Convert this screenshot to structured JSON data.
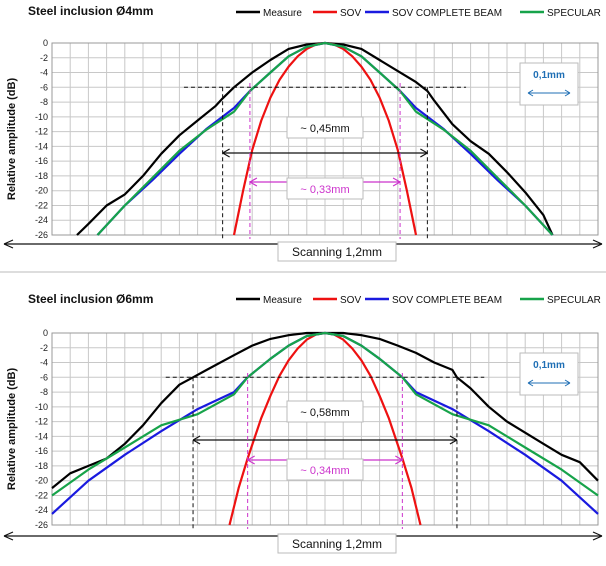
{
  "colors": {
    "measure": "#000000",
    "sov": "#ee1111",
    "sov_complete": "#1a1adf",
    "specular": "#17a34a",
    "annotation_dim": "#cc33cc",
    "annotation_ref": "#1f6fb5"
  },
  "legend": [
    "Measure",
    "SOV",
    "SOV COMPLETE BEAM",
    "SPECULAR"
  ],
  "chart_data": [
    {
      "type": "line",
      "title": "Steel inclusion Ø4mm",
      "ylabel": "Relative amplitude (dB)",
      "xlabel": "Scanning 1,2mm",
      "ylim": [
        -26,
        0
      ],
      "yticks": [
        "0",
        "-2",
        "-4",
        "-6",
        "-8",
        "-10",
        "-12",
        "-14",
        "-16",
        "-18",
        "-20",
        "-22",
        "-24",
        "-26"
      ],
      "xlim": [
        -0.6,
        0.6
      ],
      "grid": true,
      "legend_position": "top",
      "annotations": {
        "measure_width": "~ 0,45mm",
        "sov_width": "~ 0,33mm",
        "reference": "0,1mm"
      },
      "series": [
        {
          "name": "Measure",
          "x": [
            -0.545,
            -0.52,
            -0.48,
            -0.44,
            -0.4,
            -0.36,
            -0.32,
            -0.28,
            -0.24,
            -0.225,
            -0.2,
            -0.16,
            -0.12,
            -0.08,
            -0.04,
            0,
            0.04,
            0.08,
            0.12,
            0.16,
            0.2,
            0.225,
            0.24,
            0.28,
            0.32,
            0.36,
            0.4,
            0.44,
            0.48,
            0.5
          ],
          "y": [
            -26,
            -24.5,
            -22,
            -20.5,
            -18,
            -15,
            -12.5,
            -10.5,
            -8.5,
            -7.5,
            -6,
            -4,
            -2.3,
            -0.8,
            -0.2,
            0,
            -0.2,
            -0.8,
            -2.3,
            -3.8,
            -5.3,
            -6.5,
            -7.8,
            -11,
            -13.3,
            -15,
            -17.5,
            -20.2,
            -23.3,
            -26
          ]
        },
        {
          "name": "SOV",
          "x": [
            -0.2,
            -0.18,
            -0.16,
            -0.14,
            -0.12,
            -0.1,
            -0.08,
            -0.06,
            -0.04,
            -0.02,
            0,
            0.02,
            0.04,
            0.06,
            0.08,
            0.1,
            0.12,
            0.14,
            0.16,
            0.18,
            0.2
          ],
          "y": [
            -26,
            -20,
            -14.5,
            -10.5,
            -7.4,
            -5,
            -3.2,
            -1.8,
            -0.8,
            -0.2,
            0,
            -0.2,
            -0.8,
            -1.8,
            -3.2,
            -5,
            -7.4,
            -10.5,
            -14.5,
            -20,
            -26
          ]
        },
        {
          "name": "SOV COMPLETE BEAM",
          "x": [
            -0.5,
            -0.44,
            -0.38,
            -0.32,
            -0.26,
            -0.2,
            -0.165,
            -0.12,
            -0.08,
            -0.04,
            0,
            0.04,
            0.08,
            0.12,
            0.165,
            0.2,
            0.26,
            0.32,
            0.38,
            0.44,
            0.5
          ],
          "y": [
            -26,
            -22,
            -18.6,
            -15,
            -11.6,
            -8.8,
            -6.5,
            -4,
            -1.8,
            -0.5,
            0,
            -0.5,
            -1.8,
            -4,
            -6.5,
            -8.8,
            -11.6,
            -15,
            -18.6,
            -22,
            -26
          ]
        },
        {
          "name": "SPECULAR",
          "x": [
            -0.5,
            -0.44,
            -0.38,
            -0.32,
            -0.26,
            -0.2,
            -0.165,
            -0.12,
            -0.08,
            -0.04,
            0,
            0.04,
            0.08,
            0.12,
            0.165,
            0.2,
            0.26,
            0.32,
            0.38,
            0.44,
            0.5
          ],
          "y": [
            -26,
            -22,
            -18.3,
            -14.6,
            -11.7,
            -9.3,
            -6.5,
            -4,
            -1.8,
            -0.5,
            0,
            -0.5,
            -1.8,
            -4,
            -6.5,
            -9.3,
            -11.7,
            -14.6,
            -18.3,
            -22,
            -26
          ]
        }
      ]
    },
    {
      "type": "line",
      "title": "Steel inclusion Ø6mm",
      "ylabel": "Relative amplitude (dB)",
      "xlabel": "Scanning 1,2mm",
      "ylim": [
        -26,
        0
      ],
      "yticks": [
        "0",
        "-2",
        "-4",
        "-6",
        "-8",
        "-10",
        "-12",
        "-14",
        "-16",
        "-18",
        "-20",
        "-22",
        "-24",
        "-26"
      ],
      "xlim": [
        -0.6,
        0.6
      ],
      "grid": true,
      "legend_position": "top",
      "annotations": {
        "measure_width": "~ 0,58mm",
        "sov_width": "~ 0,34mm",
        "reference": "0,1mm"
      },
      "series": [
        {
          "name": "Measure",
          "x": [
            -0.6,
            -0.56,
            -0.52,
            -0.48,
            -0.44,
            -0.4,
            -0.36,
            -0.32,
            -0.29,
            -0.26,
            -0.2,
            -0.16,
            -0.12,
            -0.08,
            -0.04,
            0,
            0.04,
            0.08,
            0.12,
            0.16,
            0.2,
            0.24,
            0.28,
            0.29,
            0.32,
            0.36,
            0.4,
            0.44,
            0.48,
            0.52,
            0.56,
            0.6
          ],
          "y": [
            -21,
            -19,
            -18,
            -17,
            -15,
            -12.5,
            -9.5,
            -7,
            -6,
            -5,
            -3,
            -1.7,
            -0.8,
            -0.3,
            0,
            0,
            0,
            -0.3,
            -0.8,
            -1.7,
            -2.7,
            -4,
            -5,
            -6,
            -7.5,
            -10,
            -12,
            -13.5,
            -15,
            -16.5,
            -17.5,
            -20
          ]
        },
        {
          "name": "SOV",
          "x": [
            -0.21,
            -0.19,
            -0.17,
            -0.14,
            -0.12,
            -0.1,
            -0.08,
            -0.06,
            -0.04,
            -0.02,
            0,
            0.02,
            0.04,
            0.06,
            0.08,
            0.1,
            0.12,
            0.14,
            0.17,
            0.19,
            0.21
          ],
          "y": [
            -26,
            -21,
            -17,
            -11.5,
            -8.5,
            -5.8,
            -3.7,
            -2.1,
            -0.9,
            -0.2,
            0,
            -0.2,
            -0.9,
            -2.1,
            -3.7,
            -5.8,
            -8.5,
            -11.5,
            -17,
            -21,
            -26
          ]
        },
        {
          "name": "SOV COMPLETE BEAM",
          "x": [
            -0.6,
            -0.52,
            -0.44,
            -0.36,
            -0.28,
            -0.2,
            -0.17,
            -0.12,
            -0.08,
            -0.04,
            0,
            0.04,
            0.08,
            0.12,
            0.17,
            0.2,
            0.28,
            0.36,
            0.44,
            0.52,
            0.6
          ],
          "y": [
            -24.5,
            -20,
            -16.5,
            -13.3,
            -10.3,
            -8,
            -6,
            -3.5,
            -1.7,
            -0.4,
            0,
            -0.4,
            -1.7,
            -3.5,
            -6,
            -8,
            -10.3,
            -13.3,
            -16.5,
            -20,
            -24.5
          ]
        },
        {
          "name": "SPECULAR",
          "x": [
            -0.6,
            -0.52,
            -0.44,
            -0.36,
            -0.28,
            -0.2,
            -0.17,
            -0.12,
            -0.08,
            -0.04,
            0,
            0.04,
            0.08,
            0.12,
            0.17,
            0.2,
            0.28,
            0.36,
            0.44,
            0.52,
            0.6
          ],
          "y": [
            -22,
            -18.5,
            -15.5,
            -12.5,
            -11,
            -8.3,
            -6,
            -3.5,
            -1.7,
            -0.4,
            0,
            -0.4,
            -1.7,
            -3.5,
            -6,
            -8.3,
            -11,
            -12.5,
            -15.5,
            -18.5,
            -22
          ]
        }
      ]
    }
  ]
}
